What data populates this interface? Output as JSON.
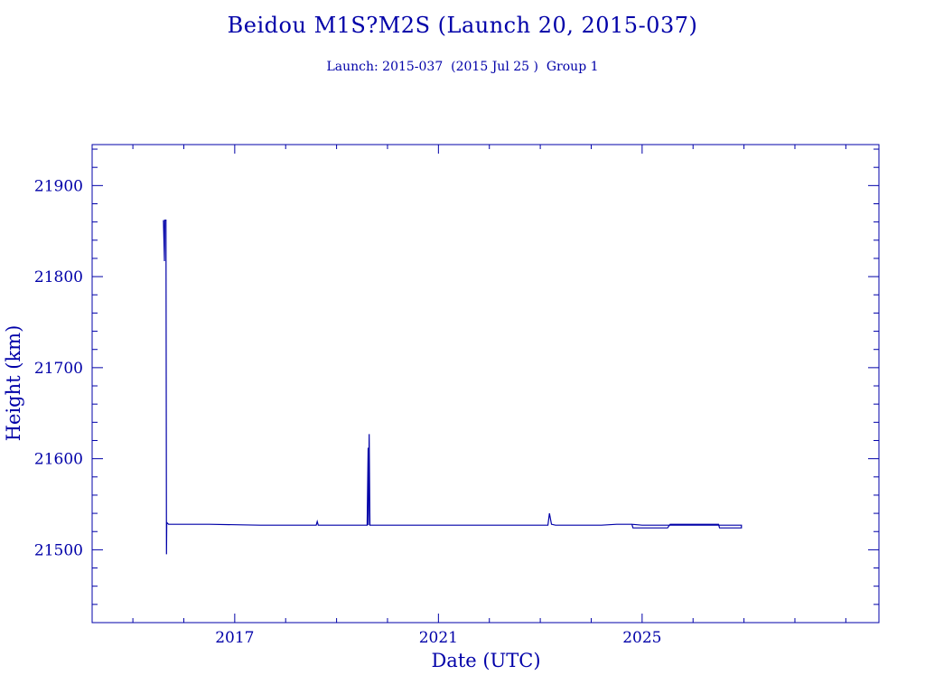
{
  "chart_data": {
    "type": "line",
    "title": "Beidou M1S?M2S (Launch 20, 2015-037)",
    "subtitle": "Launch: 2015-037  (2015 Jul 25 )  Group 1",
    "xlabel": "Date (UTC)",
    "ylabel": "Height (km)",
    "xlim": [
      2014.2,
      2029.65
    ],
    "ylim": [
      21420,
      21945
    ],
    "x_ticks": [
      2017,
      2021,
      2025
    ],
    "y_ticks": [
      21500,
      21600,
      21700,
      21800,
      21900
    ],
    "grid": false,
    "colors": {
      "axis": "#0000a8",
      "line": "#0000a8"
    },
    "series": [
      {
        "values": [
          [
            2015.6,
            21862
          ],
          [
            2015.62,
            21817
          ],
          [
            2015.625,
            21862
          ],
          [
            2015.63,
            21862
          ],
          [
            2015.65,
            21862
          ],
          [
            2015.66,
            21495
          ],
          [
            2015.665,
            21530
          ],
          [
            2015.7,
            21528
          ],
          [
            2016.0,
            21528
          ],
          [
            2016.5,
            21528
          ],
          [
            2017.5,
            21527
          ],
          [
            2018.0,
            21527
          ],
          [
            2018.6,
            21527
          ],
          [
            2018.62,
            21531
          ],
          [
            2018.64,
            21527
          ],
          [
            2019.6,
            21527
          ],
          [
            2019.62,
            21612
          ],
          [
            2019.625,
            21527
          ],
          [
            2019.64,
            21627
          ],
          [
            2019.655,
            21527
          ],
          [
            2020.5,
            21527
          ],
          [
            2022.0,
            21527
          ],
          [
            2023.0,
            21527
          ],
          [
            2023.15,
            21527
          ],
          [
            2023.18,
            21540
          ],
          [
            2023.22,
            21528
          ],
          [
            2023.3,
            21527
          ],
          [
            2024.2,
            21527
          ],
          [
            2024.5,
            21528
          ],
          [
            2024.8,
            21528
          ],
          [
            2024.82,
            21524
          ],
          [
            2025.5,
            21524
          ],
          [
            2025.55,
            21528
          ],
          [
            2026.5,
            21528
          ],
          [
            2026.52,
            21524
          ],
          [
            2026.95,
            21524
          ],
          [
            2026.95,
            21527
          ],
          [
            2026.5,
            21527
          ],
          [
            2025.0,
            21527
          ],
          [
            2024.8,
            21528
          ]
        ]
      }
    ]
  }
}
